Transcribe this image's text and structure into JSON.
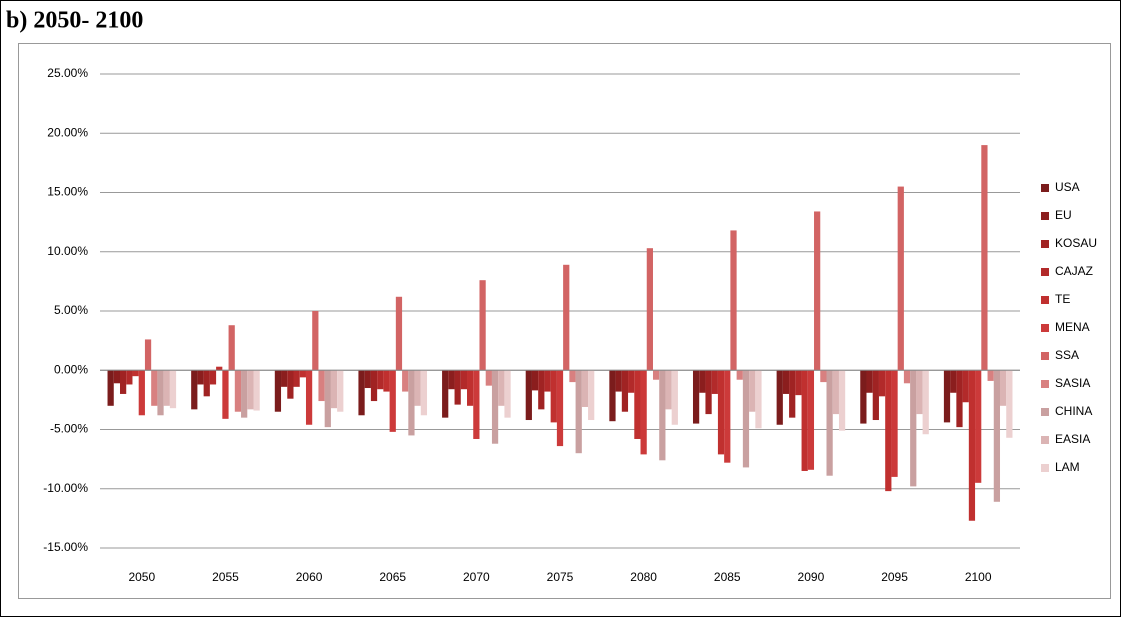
{
  "chart_data": {
    "type": "bar",
    "title": "b) 2050- 2100",
    "categories": [
      "2050",
      "2055",
      "2060",
      "2065",
      "2070",
      "2075",
      "2080",
      "2085",
      "2090",
      "2095",
      "2100"
    ],
    "ylim": [
      -15,
      25
    ],
    "yticks": [
      {
        "value": -15,
        "label": "-15.00%"
      },
      {
        "value": -10,
        "label": "-10.00%"
      },
      {
        "value": -5,
        "label": "-5.00%"
      },
      {
        "value": 0,
        "label": "0.00%"
      },
      {
        "value": 5,
        "label": "5.00%"
      },
      {
        "value": 10,
        "label": "10.00%"
      },
      {
        "value": 15,
        "label": "15.00%"
      },
      {
        "value": 20,
        "label": "20.00%"
      },
      {
        "value": 25,
        "label": "25.00%"
      }
    ],
    "grid": true,
    "legend": "right",
    "series": [
      {
        "name": "USA",
        "color": "#7b1c1c",
        "values": [
          -3.0,
          -3.3,
          -3.5,
          -3.8,
          -4.0,
          -4.2,
          -4.3,
          -4.5,
          -4.6,
          -4.5,
          -4.4
        ]
      },
      {
        "name": "EU",
        "color": "#8b1e1e",
        "values": [
          -1.1,
          -1.2,
          -1.4,
          -1.5,
          -1.6,
          -1.7,
          -1.8,
          -1.9,
          -2.0,
          -1.9,
          -1.9
        ]
      },
      {
        "name": "KOSAU",
        "color": "#a02323",
        "values": [
          -2.0,
          -2.2,
          -2.4,
          -2.6,
          -2.9,
          -3.3,
          -3.5,
          -3.7,
          -4.0,
          -4.2,
          -4.8
        ]
      },
      {
        "name": "CAJAZ",
        "color": "#b22a2a",
        "values": [
          -1.2,
          -1.2,
          -1.4,
          -1.6,
          -1.6,
          -1.8,
          -1.9,
          -2.0,
          -2.1,
          -2.2,
          -2.7
        ]
      },
      {
        "name": "TE",
        "color": "#c0302f",
        "values": [
          -0.5,
          0.3,
          -0.6,
          -1.8,
          -3.0,
          -4.4,
          -5.8,
          -7.1,
          -8.5,
          -10.2,
          -12.7
        ]
      },
      {
        "name": "MENA",
        "color": "#cc3a3a",
        "values": [
          -3.8,
          -4.1,
          -4.6,
          -5.2,
          -5.8,
          -6.4,
          -7.1,
          -7.8,
          -8.4,
          -9.0,
          -9.5
        ]
      },
      {
        "name": "SSA",
        "color": "#d26464",
        "values": [
          2.6,
          3.8,
          5.0,
          6.2,
          7.6,
          8.9,
          10.3,
          11.8,
          13.4,
          15.5,
          19.0
        ]
      },
      {
        "name": "SASIA",
        "color": "#d88080",
        "values": [
          -3.0,
          -3.5,
          -2.6,
          -1.8,
          -1.3,
          -1.0,
          -0.8,
          -0.8,
          -1.0,
          -1.1,
          -0.9
        ]
      },
      {
        "name": "CHINA",
        "color": "#c9a0a0",
        "values": [
          -3.8,
          -4.0,
          -4.8,
          -5.5,
          -6.2,
          -7.0,
          -7.6,
          -8.2,
          -8.9,
          -9.8,
          -11.1
        ]
      },
      {
        "name": "EASIA",
        "color": "#dbb4b4",
        "values": [
          -3.0,
          -3.3,
          -3.2,
          -3.0,
          -3.0,
          -3.1,
          -3.3,
          -3.5,
          -3.7,
          -3.7,
          -3.0
        ]
      },
      {
        "name": "LAM",
        "color": "#ecd0d0",
        "values": [
          -3.2,
          -3.4,
          -3.5,
          -3.8,
          -4.0,
          -4.2,
          -4.6,
          -4.9,
          -5.1,
          -5.4,
          -5.7
        ]
      }
    ]
  }
}
